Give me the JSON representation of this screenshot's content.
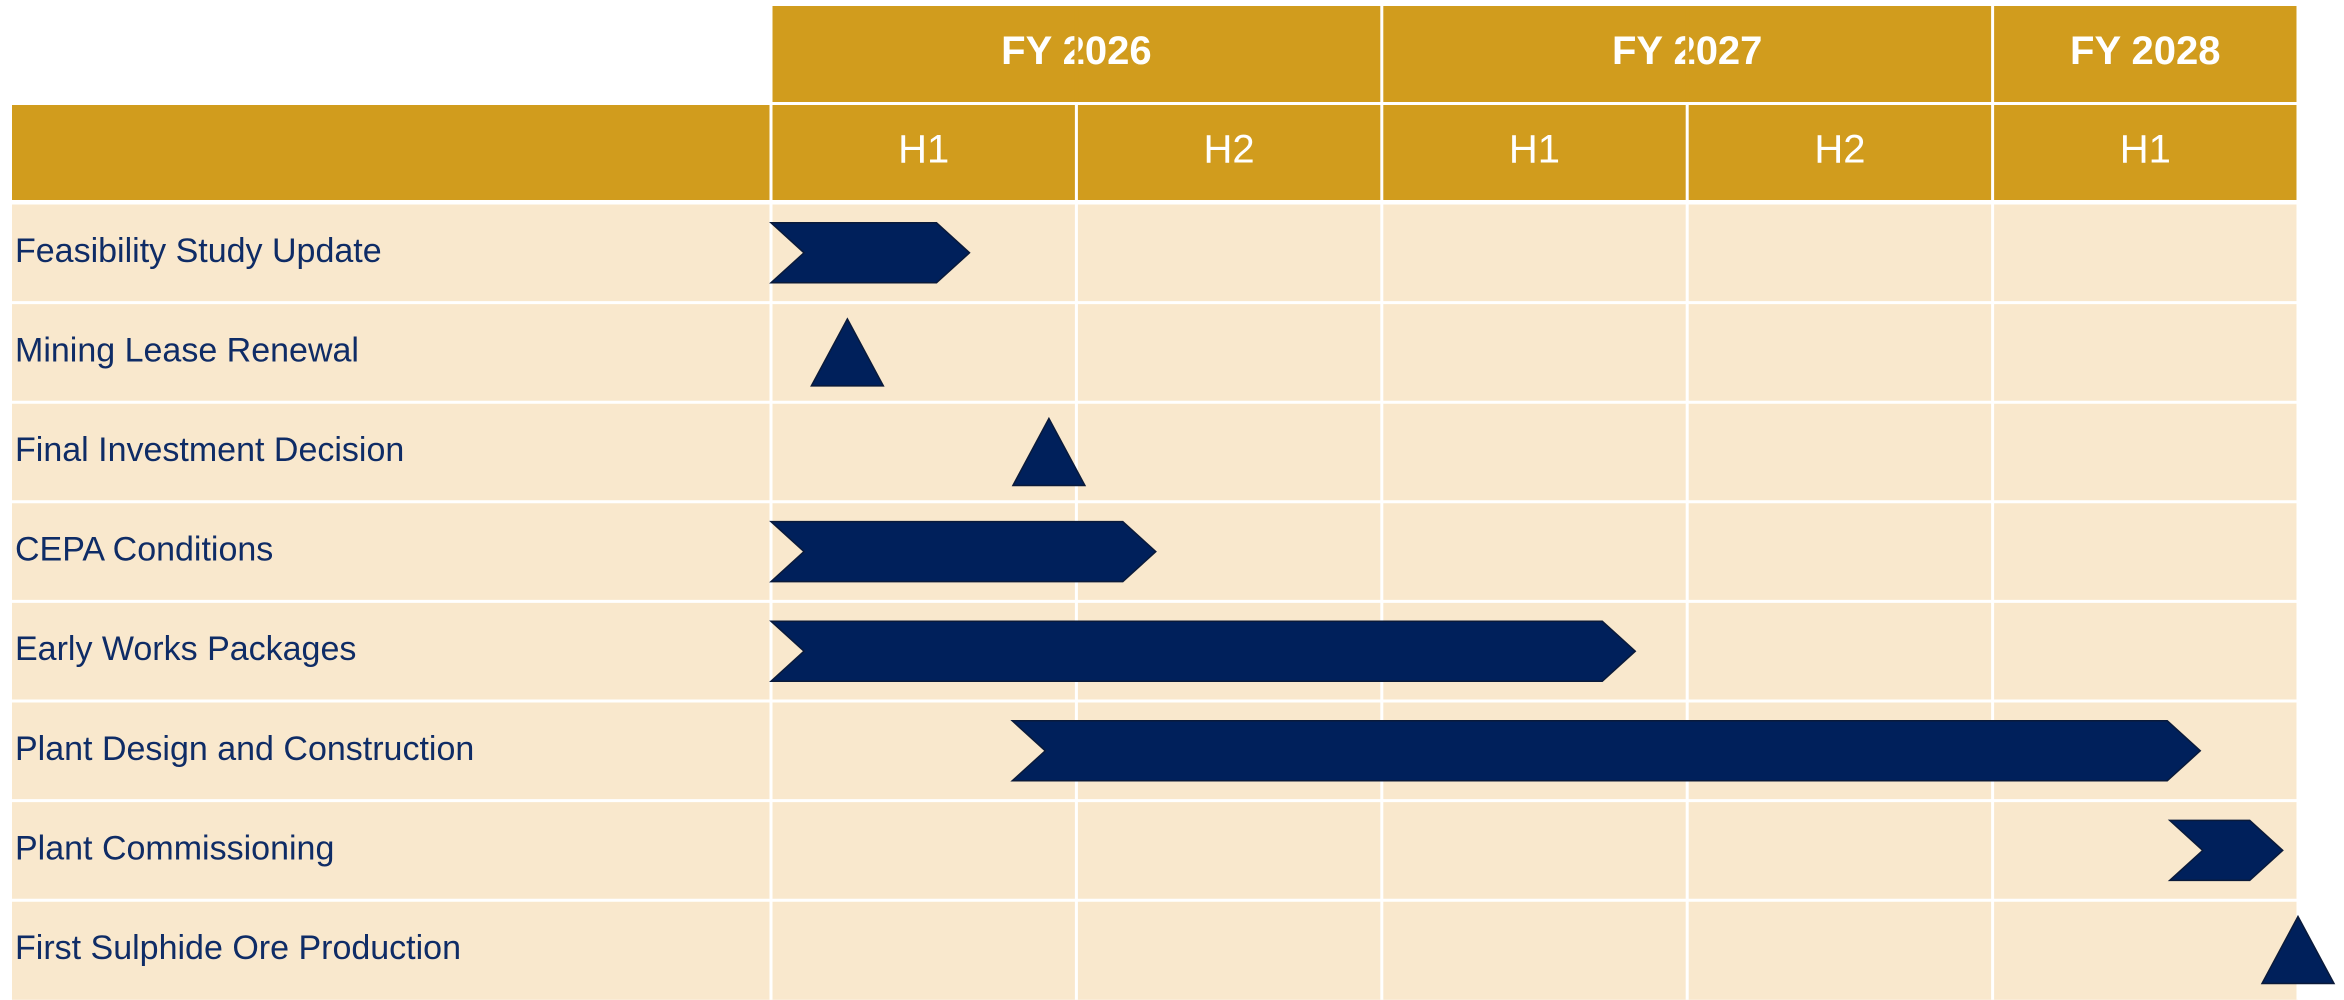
{
  "chart_data": {
    "type": "gantt",
    "years": [
      {
        "label": "FY 2026",
        "span": 2
      },
      {
        "label": "FY 2027",
        "span": 2
      },
      {
        "label": "FY 2028",
        "span": 1
      }
    ],
    "halves": [
      "H1",
      "H2",
      "H1",
      "H2",
      "H1"
    ],
    "tasks": [
      {
        "name": "Feasibility Study Update",
        "kind": "bar",
        "start": 0,
        "end": 0.65
      },
      {
        "name": "Mining Lease Renewal",
        "kind": "milestone",
        "at": 0.25
      },
      {
        "name": "Final Investment Decision",
        "kind": "milestone",
        "at": 0.91
      },
      {
        "name": "CEPA Conditions",
        "kind": "bar",
        "start": 0,
        "end": 1.26
      },
      {
        "name": "Early Works Packages",
        "kind": "bar",
        "start": 0,
        "end": 2.83
      },
      {
        "name": "Plant Design and Construction",
        "kind": "bar",
        "start": 0.79,
        "end": 4.68
      },
      {
        "name": "Plant Commissioning",
        "kind": "bar",
        "start": 4.58,
        "end": 4.95
      },
      {
        "name": "First Sulphide Ore Production",
        "kind": "milestone",
        "at": 5.0
      }
    ],
    "header_color": "#D19C1D",
    "row_color": "#F9E8CD",
    "bar_color": "#00205B"
  }
}
